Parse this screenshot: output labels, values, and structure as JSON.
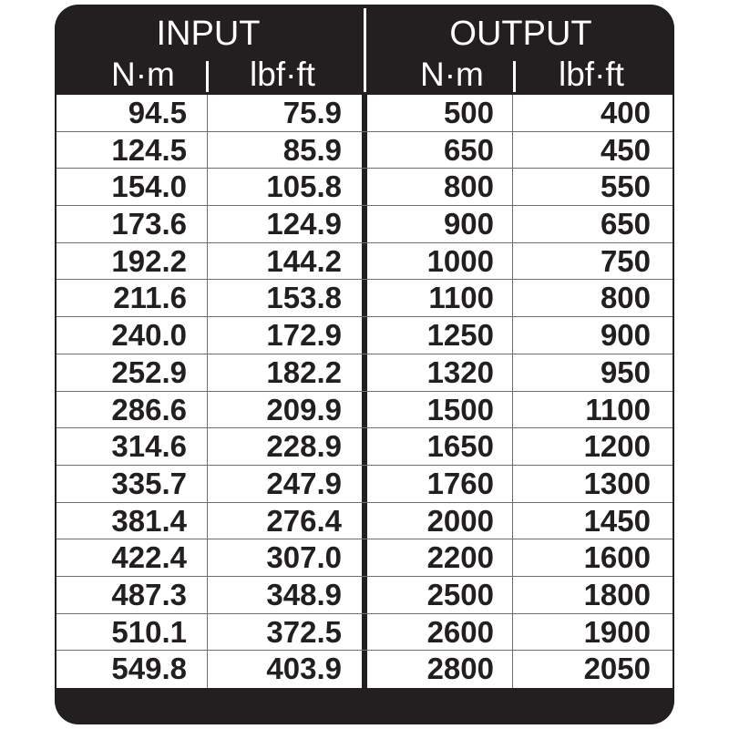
{
  "header": {
    "input": {
      "title": "INPUT",
      "unit_nm": "N·m",
      "unit_lbf": "lbf·ft"
    },
    "output": {
      "title": "OUTPUT",
      "unit_nm": "N·m",
      "unit_lbf": "lbf·ft"
    }
  },
  "rows": [
    [
      "94.5",
      "75.9",
      "500",
      "400"
    ],
    [
      "124.5",
      "85.9",
      "650",
      "450"
    ],
    [
      "154.0",
      "105.8",
      "800",
      "550"
    ],
    [
      "173.6",
      "124.9",
      "900",
      "650"
    ],
    [
      "192.2",
      "144.2",
      "1000",
      "750"
    ],
    [
      "211.6",
      "153.8",
      "1100",
      "800"
    ],
    [
      "240.0",
      "172.9",
      "1250",
      "900"
    ],
    [
      "252.9",
      "182.2",
      "1320",
      "950"
    ],
    [
      "286.6",
      "209.9",
      "1500",
      "1100"
    ],
    [
      "314.6",
      "228.9",
      "1650",
      "1200"
    ],
    [
      "335.7",
      "247.9",
      "1760",
      "1300"
    ],
    [
      "381.4",
      "276.4",
      "2000",
      "1450"
    ],
    [
      "422.4",
      "307.0",
      "2200",
      "1600"
    ],
    [
      "487.3",
      "348.9",
      "2500",
      "1800"
    ],
    [
      "510.1",
      "372.5",
      "2600",
      "1900"
    ],
    [
      "549.8",
      "403.9",
      "2800",
      "2050"
    ]
  ],
  "colors": {
    "frame": "#231f20",
    "cell": "#ffffff",
    "grid": "#6d6d6d"
  }
}
